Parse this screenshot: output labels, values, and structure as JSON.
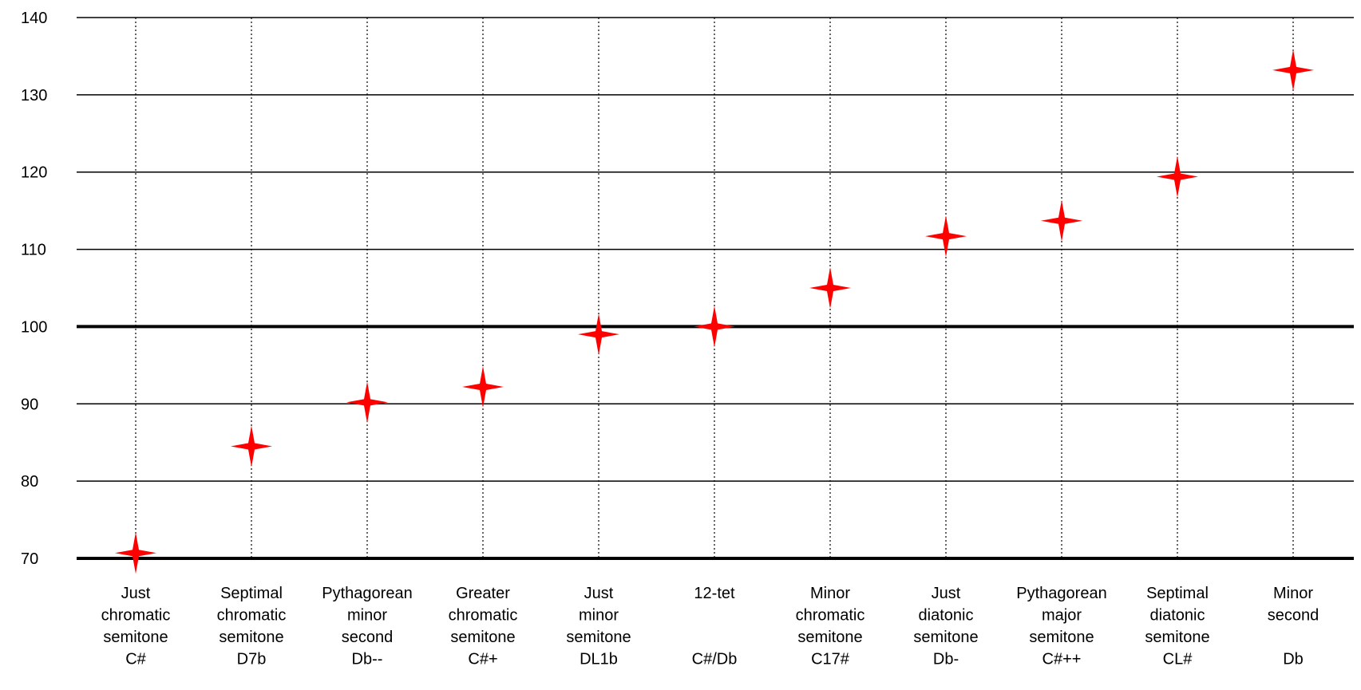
{
  "chart_data": {
    "type": "scatter",
    "title": "",
    "xlabel": "",
    "ylabel": "",
    "ylim": [
      70,
      140
    ],
    "yticks": [
      70,
      80,
      90,
      100,
      110,
      120,
      130,
      140
    ],
    "grid": true,
    "reference_line": 100,
    "marker": "four-point-star",
    "marker_color": "#ff0000",
    "categories": [
      {
        "lines": [
          "Just",
          "chromatic",
          "semitone",
          "C#"
        ],
        "value": 70.7
      },
      {
        "lines": [
          "Septimal",
          "chromatic",
          "semitone",
          "D7b"
        ],
        "value": 84.5
      },
      {
        "lines": [
          "Pythagorean",
          "minor",
          "second",
          "Db--"
        ],
        "value": 90.2
      },
      {
        "lines": [
          "Greater",
          "chromatic",
          "semitone",
          "C#+"
        ],
        "value": 92.2
      },
      {
        "lines": [
          "Just",
          "minor",
          "semitone",
          "DL1b"
        ],
        "value": 99.0
      },
      {
        "lines": [
          "12-tet",
          "",
          "",
          "C#/Db"
        ],
        "value": 100.0
      },
      {
        "lines": [
          "Minor",
          "chromatic",
          "semitone",
          "C17#"
        ],
        "value": 105.0
      },
      {
        "lines": [
          "Just",
          "diatonic",
          "semitone",
          "Db-"
        ],
        "value": 111.7
      },
      {
        "lines": [
          "Pythagorean",
          "major",
          "semitone",
          "C#++"
        ],
        "value": 113.7
      },
      {
        "lines": [
          "Septimal",
          "diatonic",
          "semitone",
          "CL#"
        ],
        "value": 119.4
      },
      {
        "lines": [
          "Minor",
          "second",
          "",
          "Db"
        ],
        "value": 133.2
      }
    ]
  }
}
